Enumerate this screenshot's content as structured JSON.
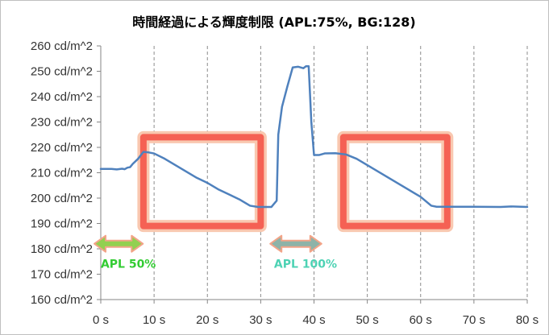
{
  "chart_data": {
    "type": "line",
    "title": "時間経過による輝度制限 (APL:75%, BG:128)",
    "xlabel": "",
    "ylabel": "",
    "xlim": [
      0,
      80
    ],
    "ylim": [
      160,
      260
    ],
    "x_ticks": [
      0,
      10,
      20,
      30,
      40,
      50,
      60,
      70,
      80
    ],
    "x_tick_labels": [
      "0 s",
      "10 s",
      "20 s",
      "30 s",
      "40 s",
      "50 s",
      "60 s",
      "70 s",
      "80 s"
    ],
    "y_ticks": [
      160,
      170,
      180,
      190,
      200,
      210,
      220,
      230,
      240,
      250,
      260
    ],
    "y_tick_labels": [
      "160 cd/m^2",
      "170 cd/m^2",
      "180 cd/m^2",
      "190 cd/m^2",
      "200 cd/m^2",
      "210 cd/m^2",
      "220 cd/m^2",
      "230 cd/m^2",
      "240 cd/m^2",
      "250 cd/m^2",
      "260 cd/m^2"
    ],
    "grid": "vertical dashed",
    "line_color": "#4f81bd",
    "series": [
      {
        "name": "",
        "x": [
          0,
          2,
          3,
          4,
          4.5,
          5,
          5.5,
          6,
          7,
          8,
          9,
          10,
          12,
          14,
          16,
          18,
          20,
          22,
          24,
          26,
          28,
          29.5,
          30,
          32,
          33,
          33.3,
          34,
          35,
          36,
          37,
          38,
          38.5,
          39,
          39.5,
          40,
          41,
          42,
          44,
          46,
          48,
          50,
          52,
          54,
          56,
          58,
          60,
          62,
          63,
          65,
          70,
          75,
          77,
          80
        ],
        "y": [
          211.5,
          211.5,
          211.3,
          211.6,
          211.4,
          212,
          212.2,
          213.5,
          215.5,
          218.2,
          218,
          217.6,
          215.5,
          213,
          210.5,
          208,
          206,
          203.5,
          201.5,
          199.5,
          197,
          196.5,
          196.5,
          196.5,
          199,
          225,
          236,
          244,
          251.5,
          251.8,
          251.2,
          252,
          252,
          230,
          217,
          217,
          217.6,
          217.7,
          217.2,
          215.5,
          213,
          210.5,
          208,
          205.5,
          203,
          200.5,
          197,
          196.6,
          196.6,
          196.6,
          196.5,
          196.7,
          196.5
        ]
      }
    ],
    "annotations": [
      {
        "type": "highlight-box",
        "x_range": [
          8,
          30
        ],
        "y_range": [
          189,
          224
        ]
      },
      {
        "type": "highlight-box",
        "x_range": [
          45.5,
          65
        ],
        "y_range": [
          189,
          224
        ]
      },
      {
        "type": "double-arrow",
        "x_range": [
          0,
          7
        ],
        "y": 182,
        "color": "#92d050",
        "label": "APL 50%",
        "label_color": "#33cc33"
      },
      {
        "type": "double-arrow",
        "x_range": [
          33,
          40.5
        ],
        "y": 182,
        "color": "#8db3a8",
        "label": "APL 100%",
        "label_color": "#4dd2b4"
      }
    ]
  }
}
